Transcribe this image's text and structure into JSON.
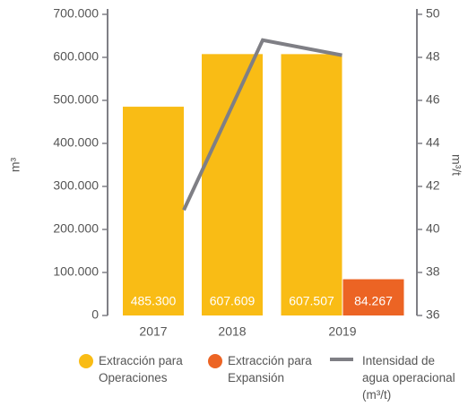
{
  "chart_data": {
    "type": "bar",
    "categories": [
      "2017",
      "2018",
      "2019"
    ],
    "y_label": "m³",
    "y2_label": "m³/t",
    "ylim": [
      0,
      700000
    ],
    "yticks": [
      0,
      {
        "value": 100000,
        "label": "100.000"
      },
      {
        "value": 200000,
        "label": "200.000"
      },
      {
        "value": 300000,
        "label": "300.000"
      },
      {
        "value": 400000,
        "label": "400.000"
      },
      {
        "value": 500000,
        "label": "500.000"
      },
      {
        "value": 600000,
        "label": "600.000"
      },
      {
        "value": 700000,
        "label": "700.000"
      }
    ],
    "y2lim": [
      36,
      50
    ],
    "y2ticks": [
      36,
      38,
      40,
      42,
      44,
      46,
      48,
      50
    ],
    "series": [
      {
        "name": "Extracción para Operaciones",
        "color": "#f9bc15",
        "values": [
          485300,
          607609,
          607507
        ],
        "value_labels": [
          "485.300",
          "607.609",
          "607.507"
        ]
      },
      {
        "name": "Extracción para Expansión",
        "color": "#ec6424",
        "values": [
          null,
          null,
          84267
        ],
        "value_labels": [
          null,
          null,
          "84.267"
        ]
      },
      {
        "name": "Intensidad de agua operacional (m³/t)",
        "color": "#7f7f85",
        "type": "line",
        "axis": "y2",
        "values": [
          40.9,
          48.8,
          48.1
        ]
      }
    ]
  }
}
